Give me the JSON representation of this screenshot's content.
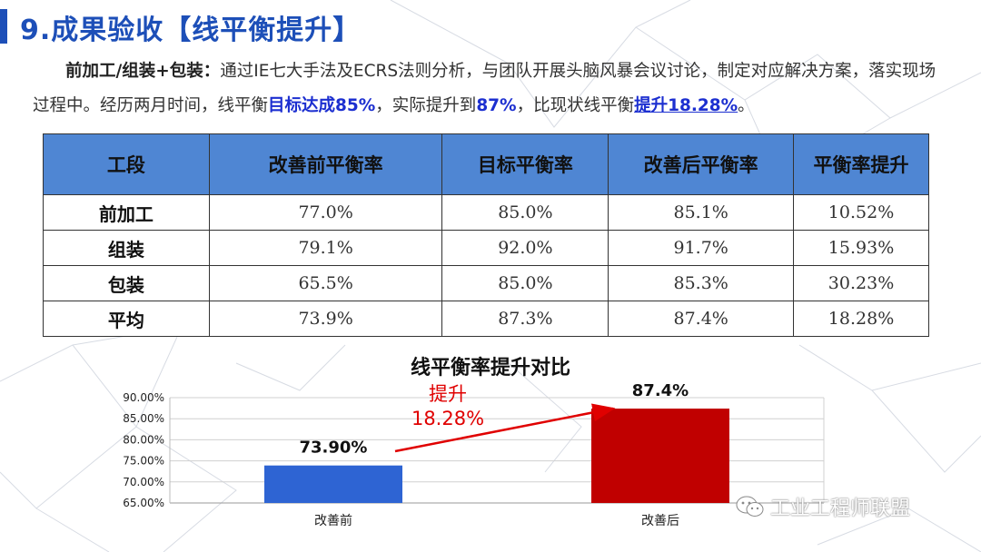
{
  "title": "9.成果验收【线平衡提升】",
  "paragraph": {
    "lead": "前加工/组装+包装：",
    "text1": "通过IE七大手法及ECRS法则分析，与团队开展头脑风暴会议讨论，制定对应解决方案，落实现场过程中。经历两月时间，线平衡",
    "target": "目标达成85%",
    "text2": "，实际提升到",
    "actual": "87%",
    "text3": "，比现状线平衡",
    "improve": "提升18.28%",
    "text4": "。"
  },
  "table": {
    "headers": [
      "工段",
      "改善前平衡率",
      "目标平衡率",
      "改善后平衡率",
      "平衡率提升"
    ],
    "rows": [
      [
        "前加工",
        "77.0%",
        "85.0%",
        "85.1%",
        "10.52%"
      ],
      [
        "组装",
        "79.1%",
        "92.0%",
        "91.7%",
        "15.93%"
      ],
      [
        "包装",
        "65.5%",
        "85.0%",
        "85.3%",
        "30.23%"
      ],
      [
        "平均",
        "73.9%",
        "87.3%",
        "87.4%",
        "18.28%"
      ]
    ]
  },
  "chart_data": {
    "type": "bar",
    "title": "线平衡率提升对比",
    "categories": [
      "改善前",
      "改善后"
    ],
    "values": [
      73.9,
      87.4
    ],
    "data_labels": [
      "73.90%",
      "87.4%"
    ],
    "colors": [
      "#2e64d3",
      "#c00000"
    ],
    "ylim": [
      65,
      90
    ],
    "yticks": [
      "65.00%",
      "70.00%",
      "75.00%",
      "80.00%",
      "85.00%",
      "90.00%"
    ],
    "grid": true,
    "annotation": {
      "line1": "提升",
      "line2": "18.28%",
      "color": "#e00000"
    }
  },
  "watermark": {
    "text": "工业工程师联盟",
    "icon": "wechat-icon"
  }
}
